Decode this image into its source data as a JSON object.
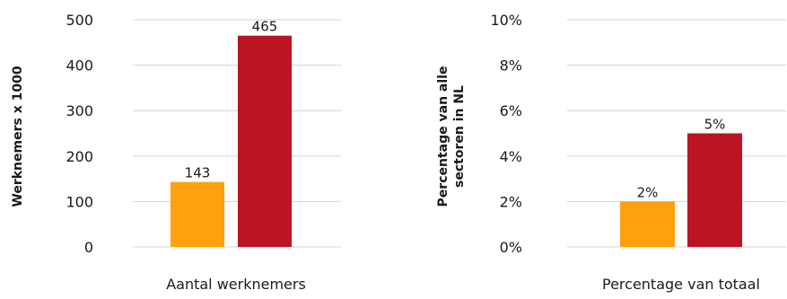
{
  "colors": {
    "orange": "#FFA10C",
    "red": "#BC1423",
    "grid": "#D4D4D4"
  },
  "chart_data": [
    {
      "type": "bar",
      "categories": [
        "Aantal werknemers"
      ],
      "series": [
        {
          "values": [
            143
          ],
          "color": "#FFA10C",
          "data_labels": [
            "143"
          ]
        },
        {
          "values": [
            465
          ],
          "color": "#BC1423",
          "data_labels": [
            "465"
          ]
        }
      ],
      "xlabel": "Aantal werknemers",
      "ylabel": "Werknemers x 1000",
      "ylim": [
        0,
        500
      ],
      "yticks": [
        0,
        100,
        200,
        300,
        400,
        500
      ],
      "ytick_labels": [
        "0",
        "100",
        "200",
        "300",
        "400",
        "500"
      ],
      "grid": true,
      "legend": "none"
    },
    {
      "type": "bar",
      "categories": [
        "Percentage van totaal"
      ],
      "series": [
        {
          "values": [
            2
          ],
          "color": "#FFA10C",
          "data_labels": [
            "2%"
          ]
        },
        {
          "values": [
            5
          ],
          "color": "#BC1423",
          "data_labels": [
            "5%"
          ]
        }
      ],
      "xlabel": "Percentage van totaal",
      "ylabel_lines": [
        "Percentage van alle",
        "sectoren in NL"
      ],
      "ylim": [
        0,
        10
      ],
      "yticks": [
        0,
        2,
        4,
        6,
        8,
        10
      ],
      "ytick_labels": [
        "0%",
        "2%",
        "4%",
        "6%",
        "8%",
        "10%"
      ],
      "grid": true,
      "legend": "none"
    }
  ]
}
